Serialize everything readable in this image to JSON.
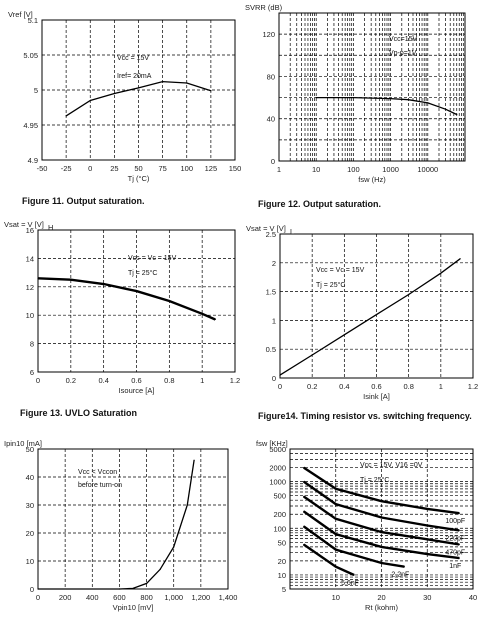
{
  "captions": {
    "c1": "Figure 11. Output saturation.",
    "c2": "Figure 12. Output saturation.",
    "c3": "Figure 13. UVLO Saturation",
    "c4": "Figure14. Timing resistor vs. switching frequency."
  },
  "chart_data": [
    {
      "type": "line",
      "ylabel": "Vref [V]",
      "xlabel": "Tj (°C)",
      "xlim": [
        -50,
        150
      ],
      "ylim": [
        4.9,
        5.1
      ],
      "xticks": [
        "-50",
        "-25",
        "0",
        "25",
        "50",
        "75",
        "100",
        "125",
        "150"
      ],
      "yticks": [
        "4.9",
        "4.95",
        "5",
        "5.05",
        "5.1"
      ],
      "annotations": [
        "Vcc = 15V",
        "Iref= 20mA"
      ],
      "grid": true,
      "series": [
        {
          "x": [
            -25,
            0,
            25,
            50,
            75,
            100,
            125
          ],
          "y": [
            4.963,
            4.985,
            4.995,
            5.003,
            5.012,
            5.01,
            4.999
          ]
        }
      ]
    },
    {
      "type": "line",
      "ylabel": "SVRR (dB)",
      "xlabel": "fsw (Hz)",
      "xscale": "log",
      "xlim": [
        1,
        100000
      ],
      "ylim": [
        0,
        140
      ],
      "xticks": [
        "1",
        "10",
        "100",
        "1000",
        "10000"
      ],
      "yticks": [
        "0",
        "40",
        "80",
        "120"
      ],
      "annotations": [
        "Vcc=15V",
        "Vp-p=1V"
      ],
      "grid": true,
      "series": [
        {
          "x": [
            10,
            100,
            1000,
            3000,
            10000,
            30000,
            60000
          ],
          "y": [
            60,
            60,
            59,
            58,
            55,
            49,
            44
          ]
        }
      ]
    },
    {
      "type": "line",
      "ylabel": "Vsat = V  [V]",
      "ylabel_sub": "H",
      "xlabel": "Isource [A]",
      "xlim": [
        0,
        1.2
      ],
      "ylim": [
        6,
        16
      ],
      "xticks": [
        "0",
        "0.2",
        "0.4",
        "0.6",
        "0.8",
        "1",
        "1.2"
      ],
      "yticks": [
        "6",
        "8",
        "10",
        "12",
        "14",
        "16"
      ],
      "annotations": [
        "Vcc = Vc = 15V",
        "Tj = 25°C"
      ],
      "grid": true,
      "series": [
        {
          "x": [
            0,
            0.2,
            0.4,
            0.6,
            0.8,
            1.0,
            1.08
          ],
          "y": [
            12.6,
            12.5,
            12.2,
            11.7,
            11.0,
            10.1,
            9.7
          ]
        }
      ]
    },
    {
      "type": "line",
      "ylabel": "Vsat = V  [V]",
      "ylabel_sub": "L",
      "xlabel": "Isink [A]",
      "xlim": [
        0,
        1.2
      ],
      "ylim": [
        0,
        2.5
      ],
      "xticks": [
        "0",
        "0.2",
        "0.4",
        "0.6",
        "0.8",
        "1",
        "1.2"
      ],
      "yticks": [
        "0",
        "0.5",
        "1",
        "1.5",
        "2",
        "2.5"
      ],
      "annotations": [
        "Vcc = Vc = 15V",
        "Tj = 25°C"
      ],
      "grid": true,
      "series": [
        {
          "x": [
            0,
            0.2,
            0.4,
            0.6,
            0.8,
            1.0,
            1.12
          ],
          "y": [
            0.05,
            0.4,
            0.75,
            1.1,
            1.45,
            1.82,
            2.07
          ]
        }
      ]
    },
    {
      "type": "line",
      "ylabel": "Ipin10 [mA]",
      "xlabel": "Vpin10 [mV]",
      "xlim": [
        0,
        1400
      ],
      "ylim": [
        0,
        50
      ],
      "xticks": [
        "0",
        "200",
        "400",
        "600",
        "800",
        "1,000",
        "1,200",
        "1,400"
      ],
      "yticks": [
        "0",
        "10",
        "20",
        "30",
        "40",
        "50"
      ],
      "annotations": [
        "Vcc < Vccon",
        "before turn-on"
      ],
      "grid": true,
      "series": [
        {
          "x": [
            0,
            600,
            700,
            800,
            900,
            1000,
            1100,
            1150
          ],
          "y": [
            0,
            0,
            0.2,
            2,
            7,
            15,
            30,
            46
          ]
        }
      ]
    },
    {
      "type": "line",
      "ylabel": "fsw [KHz]",
      "xlabel": "Rt (kohm)",
      "yscale": "log",
      "xlim": [
        0,
        40
      ],
      "ylim": [
        5,
        5000
      ],
      "xticks": [
        "10",
        "20",
        "30",
        "40"
      ],
      "yticks": [
        "5",
        "10",
        "20",
        "50",
        "100",
        "200",
        "500",
        "1000",
        "2000",
        "5000"
      ],
      "annotations": [
        "Vcc = 15V, V16 =0V",
        "Tj = 25°C"
      ],
      "grid": true,
      "series": [
        {
          "name": "100pF",
          "x": [
            3,
            10,
            20,
            30,
            37
          ],
          "y": [
            2000,
            700,
            380,
            260,
            210
          ]
        },
        {
          "name": "220pF",
          "x": [
            3,
            10,
            20,
            30,
            37
          ],
          "y": [
            1000,
            330,
            170,
            115,
            90
          ]
        },
        {
          "name": "470pF",
          "x": [
            3,
            10,
            20,
            30,
            37
          ],
          "y": [
            480,
            160,
            83,
            58,
            45
          ]
        },
        {
          "name": "1nF",
          "x": [
            3,
            10,
            20,
            30,
            37
          ],
          "y": [
            230,
            75,
            40,
            28,
            23
          ]
        },
        {
          "name": "2.2nF",
          "x": [
            3,
            10,
            20,
            25
          ],
          "y": [
            110,
            35,
            18,
            15
          ]
        },
        {
          "name": "5.6nF",
          "x": [
            3,
            10,
            14
          ],
          "y": [
            45,
            15,
            10
          ]
        }
      ]
    }
  ]
}
